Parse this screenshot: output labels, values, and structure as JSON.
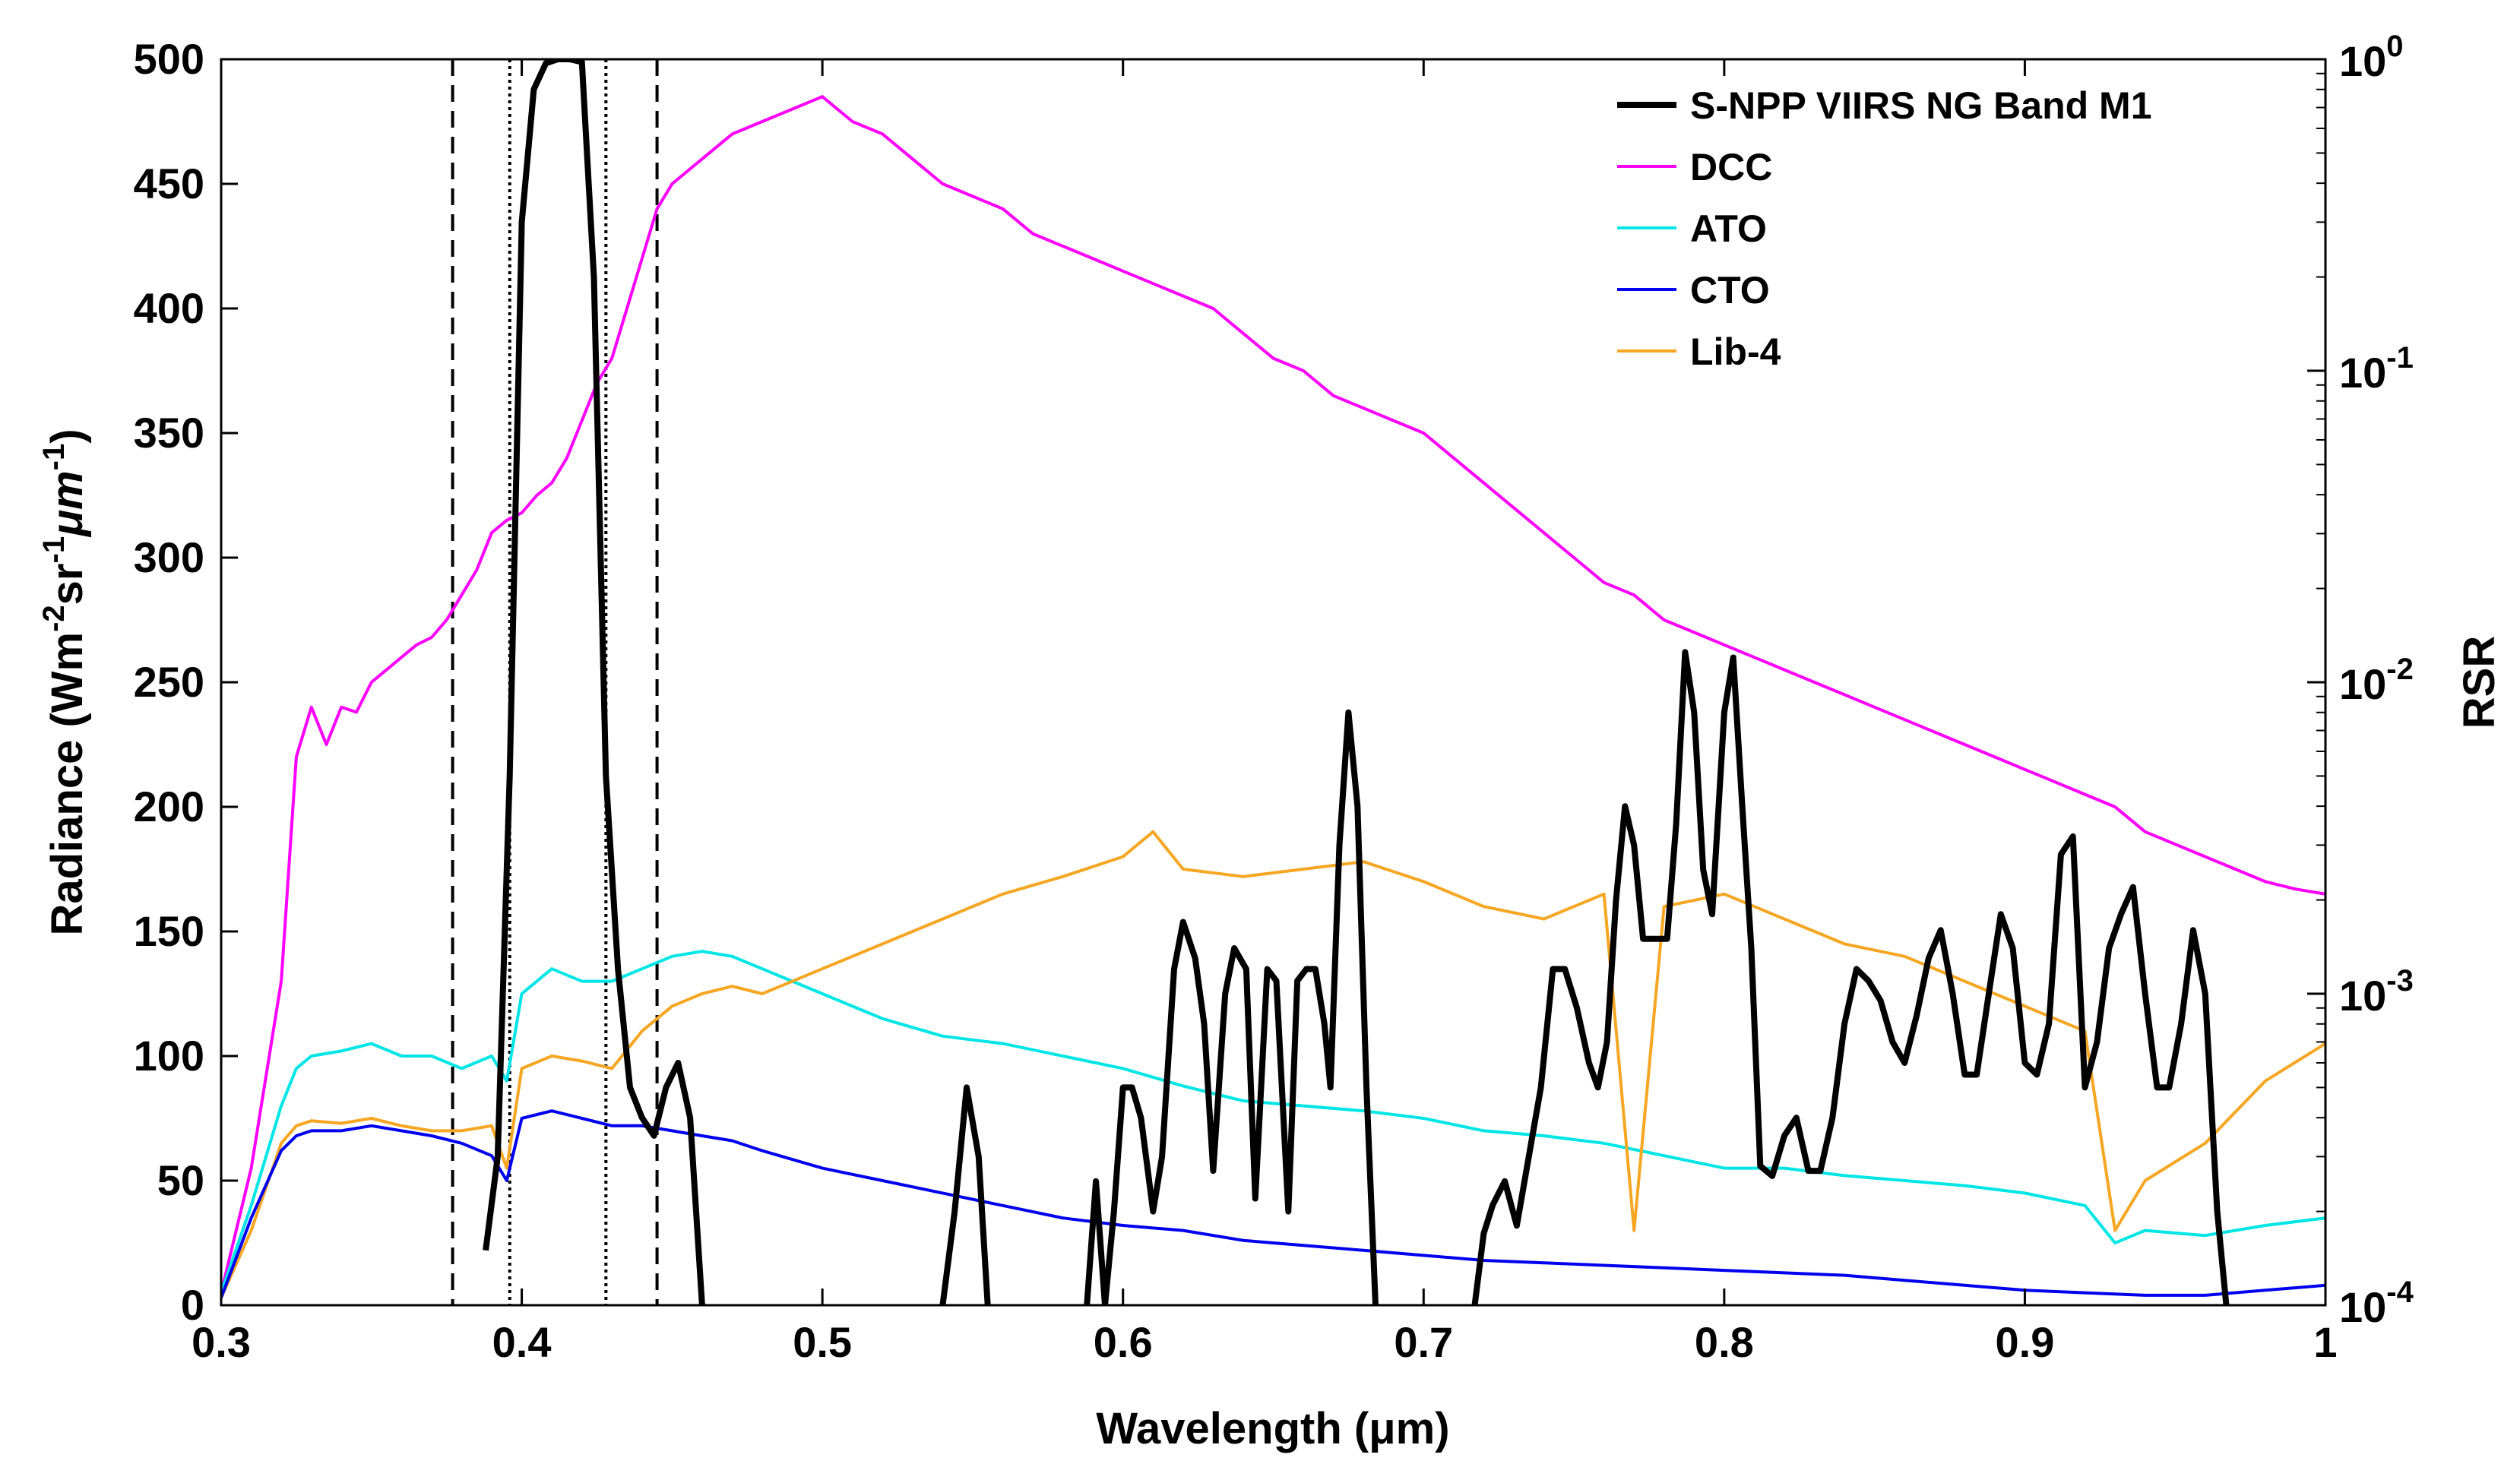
{
  "chart_data": {
    "type": "line",
    "title": "",
    "xlabel": "Wavelength (μm)",
    "ylabel": "Radiance (Wm-2sr-1μm-1)",
    "ylabel_parts": {
      "pre": "Radiance (Wm",
      "sup1": "-2",
      "mid": "sr",
      "sup2": "-1",
      "unit": "μm",
      "sup3": "-1",
      "post": ")"
    },
    "y2label": "RSR",
    "xlim": [
      0.3,
      1.0
    ],
    "ylim": [
      0,
      500
    ],
    "y2lim": [
      0.0001,
      1
    ],
    "y2scale": "log",
    "xticks": [
      "0.3",
      "0.4",
      "0.5",
      "0.6",
      "0.7",
      "0.8",
      "0.9",
      "1"
    ],
    "yticks": [
      "0",
      "50",
      "100",
      "150",
      "200",
      "250",
      "300",
      "350",
      "400",
      "450",
      "500"
    ],
    "y2ticks": [
      {
        "base": "10",
        "exp": "-4",
        "value": 0.0001
      },
      {
        "base": "10",
        "exp": "-3",
        "value": 0.001
      },
      {
        "base": "10",
        "exp": "-2",
        "value": 0.01
      },
      {
        "base": "10",
        "exp": "-1",
        "value": 0.1
      },
      {
        "base": "10",
        "exp": "0",
        "value": 1
      }
    ],
    "legend_position": "top-right",
    "vlines": [
      {
        "x": 0.377,
        "style": "dashed"
      },
      {
        "x": 0.445,
        "style": "dashed"
      },
      {
        "x": 0.396,
        "style": "dotted"
      },
      {
        "x": 0.428,
        "style": "dotted"
      }
    ],
    "series": [
      {
        "name": "S-NPP VIIRS NG Band M1",
        "color": "#000000",
        "axis": "right",
        "x": [
          0.388,
          0.392,
          0.396,
          0.4,
          0.404,
          0.408,
          0.412,
          0.416,
          0.42,
          0.424,
          0.428,
          0.432,
          0.436,
          0.44,
          0.444,
          0.448,
          0.452,
          0.456,
          0.46,
          0.54,
          0.544,
          0.548,
          0.552,
          0.555,
          0.588,
          0.591,
          0.594,
          0.597,
          0.6,
          0.603,
          0.606,
          0.61,
          0.613,
          0.617,
          0.62,
          0.624,
          0.627,
          0.63,
          0.634,
          0.637,
          0.641,
          0.644,
          0.648,
          0.651,
          0.655,
          0.658,
          0.661,
          0.664,
          0.667,
          0.669,
          0.672,
          0.675,
          0.678,
          0.681,
          0.684,
          0.717,
          0.72,
          0.723,
          0.727,
          0.731,
          0.735,
          0.739,
          0.743,
          0.747,
          0.751,
          0.755,
          0.758,
          0.761,
          0.764,
          0.767,
          0.77,
          0.773,
          0.777,
          0.781,
          0.784,
          0.787,
          0.79,
          0.793,
          0.796,
          0.8,
          0.803,
          0.806,
          0.809,
          0.812,
          0.816,
          0.82,
          0.824,
          0.828,
          0.832,
          0.836,
          0.84,
          0.844,
          0.848,
          0.852,
          0.856,
          0.86,
          0.864,
          0.868,
          0.872,
          0.876,
          0.88,
          0.884,
          0.888,
          0.892,
          0.896,
          0.9,
          0.904,
          0.908,
          0.912,
          0.916,
          0.92,
          0.924,
          0.928,
          0.932,
          0.936,
          0.94,
          0.944,
          0.948,
          0.952,
          0.956,
          0.96,
          0.964,
          0.967
        ],
        "y": [
          0.00015,
          0.0003,
          0.005,
          0.3,
          0.8,
          0.97,
          1,
          1,
          0.98,
          0.2,
          0.005,
          0.0012,
          0.0005,
          0.0004,
          0.00035,
          0.0005,
          0.0006,
          0.0004,
          0.0001,
          0.0001,
          0.0002,
          0.0005,
          0.0003,
          0.0001,
          0.0001,
          0.00025,
          0.0001,
          0.0002,
          0.0005,
          0.0005,
          0.0004,
          0.0002,
          0.0003,
          0.0012,
          0.0017,
          0.0013,
          0.0008,
          0.00027,
          0.001,
          0.0014,
          0.0012,
          0.00022,
          0.0012,
          0.0011,
          0.0002,
          0.0011,
          0.0012,
          0.0012,
          0.0008,
          0.0005,
          0.003,
          0.008,
          0.004,
          0.0005,
          0.0001,
          0.0001,
          0.00017,
          0.00021,
          0.00025,
          0.00018,
          0.0003,
          0.0005,
          0.0012,
          0.0012,
          0.0009,
          0.0006,
          0.0005,
          0.0007,
          0.002,
          0.004,
          0.003,
          0.0015,
          0.0015,
          0.0015,
          0.0035,
          0.0125,
          0.008,
          0.0025,
          0.0018,
          0.008,
          0.012,
          0.004,
          0.0014,
          0.00028,
          0.00026,
          0.00035,
          0.0004,
          0.00027,
          0.00027,
          0.0004,
          0.0008,
          0.0012,
          0.0011,
          0.00095,
          0.0007,
          0.0006,
          0.00085,
          0.0013,
          0.0016,
          0.001,
          0.00055,
          0.00055,
          0.001,
          0.0018,
          0.0014,
          0.0006,
          0.00055,
          0.0008,
          0.0028,
          0.0032,
          0.0005,
          0.0007,
          0.0014,
          0.0018,
          0.0022,
          0.001,
          0.0005,
          0.0005,
          0.0008,
          0.0016,
          0.001,
          0.0002,
          0.0001
        ]
      },
      {
        "name": "DCC",
        "color": "#ff00ff",
        "axis": "left",
        "x": [
          0.3,
          0.31,
          0.32,
          0.325,
          0.33,
          0.335,
          0.34,
          0.345,
          0.35,
          0.355,
          0.36,
          0.365,
          0.37,
          0.375,
          0.38,
          0.385,
          0.39,
          0.395,
          0.4,
          0.405,
          0.41,
          0.415,
          0.42,
          0.425,
          0.43,
          0.435,
          0.44,
          0.445,
          0.45,
          0.46,
          0.47,
          0.48,
          0.49,
          0.5,
          0.51,
          0.52,
          0.53,
          0.54,
          0.55,
          0.56,
          0.57,
          0.58,
          0.59,
          0.6,
          0.61,
          0.62,
          0.63,
          0.64,
          0.65,
          0.66,
          0.67,
          0.68,
          0.69,
          0.7,
          0.71,
          0.72,
          0.73,
          0.74,
          0.75,
          0.76,
          0.77,
          0.78,
          0.79,
          0.8,
          0.81,
          0.82,
          0.83,
          0.84,
          0.85,
          0.86,
          0.87,
          0.88,
          0.89,
          0.9,
          0.91,
          0.92,
          0.93,
          0.94,
          0.95,
          0.96,
          0.97,
          0.98,
          0.99,
          1.0
        ],
        "y": [
          5,
          55,
          130,
          220,
          240,
          225,
          240,
          238,
          250,
          255,
          260,
          265,
          268,
          275,
          285,
          295,
          310,
          315,
          318,
          325,
          330,
          340,
          355,
          370,
          380,
          400,
          420,
          440,
          450,
          460,
          470,
          475,
          480,
          485,
          475,
          470,
          460,
          450,
          445,
          440,
          430,
          425,
          420,
          415,
          410,
          405,
          400,
          390,
          380,
          375,
          365,
          360,
          355,
          350,
          340,
          330,
          320,
          310,
          300,
          290,
          285,
          275,
          270,
          265,
          260,
          255,
          250,
          245,
          240,
          235,
          230,
          225,
          220,
          215,
          210,
          205,
          200,
          190,
          185,
          180,
          175,
          170,
          167,
          165
        ]
      },
      {
        "name": "ATO",
        "color": "#00e5e5",
        "axis": "left",
        "x": [
          0.3,
          0.31,
          0.32,
          0.325,
          0.33,
          0.34,
          0.35,
          0.36,
          0.37,
          0.38,
          0.39,
          0.395,
          0.4,
          0.41,
          0.42,
          0.43,
          0.44,
          0.45,
          0.46,
          0.47,
          0.48,
          0.49,
          0.5,
          0.52,
          0.54,
          0.56,
          0.58,
          0.6,
          0.62,
          0.64,
          0.66,
          0.68,
          0.7,
          0.72,
          0.74,
          0.76,
          0.78,
          0.8,
          0.82,
          0.84,
          0.86,
          0.88,
          0.9,
          0.92,
          0.93,
          0.94,
          0.96,
          0.98,
          1.0
        ],
        "y": [
          5,
          40,
          80,
          95,
          100,
          102,
          105,
          100,
          100,
          95,
          100,
          90,
          125,
          135,
          130,
          130,
          135,
          140,
          142,
          140,
          135,
          130,
          125,
          115,
          108,
          105,
          100,
          95,
          88,
          82,
          80,
          78,
          75,
          70,
          68,
          65,
          60,
          55,
          55,
          52,
          50,
          48,
          45,
          40,
          25,
          30,
          28,
          32,
          35
        ]
      },
      {
        "name": "CTO",
        "color": "#0000ee",
        "axis": "left",
        "x": [
          0.3,
          0.31,
          0.32,
          0.325,
          0.33,
          0.34,
          0.35,
          0.36,
          0.37,
          0.38,
          0.39,
          0.395,
          0.4,
          0.41,
          0.42,
          0.43,
          0.44,
          0.45,
          0.46,
          0.47,
          0.48,
          0.5,
          0.52,
          0.54,
          0.56,
          0.58,
          0.6,
          0.62,
          0.64,
          0.66,
          0.68,
          0.7,
          0.72,
          0.74,
          0.76,
          0.78,
          0.8,
          0.82,
          0.84,
          0.86,
          0.88,
          0.9,
          0.92,
          0.94,
          0.96,
          0.98,
          1.0
        ],
        "y": [
          3,
          35,
          62,
          68,
          70,
          70,
          72,
          70,
          68,
          65,
          60,
          50,
          75,
          78,
          75,
          72,
          72,
          70,
          68,
          66,
          62,
          55,
          50,
          45,
          40,
          35,
          32,
          30,
          26,
          24,
          22,
          20,
          18,
          17,
          16,
          15,
          14,
          13,
          12,
          10,
          8,
          6,
          5,
          4,
          4,
          6,
          8
        ]
      },
      {
        "name": "Lib-4",
        "color": "#f5a623",
        "axis": "left",
        "x": [
          0.3,
          0.31,
          0.32,
          0.325,
          0.33,
          0.34,
          0.35,
          0.36,
          0.37,
          0.38,
          0.39,
          0.395,
          0.4,
          0.41,
          0.42,
          0.43,
          0.44,
          0.45,
          0.46,
          0.47,
          0.48,
          0.5,
          0.52,
          0.54,
          0.56,
          0.58,
          0.6,
          0.61,
          0.62,
          0.64,
          0.66,
          0.68,
          0.7,
          0.72,
          0.74,
          0.76,
          0.77,
          0.78,
          0.8,
          0.82,
          0.84,
          0.86,
          0.88,
          0.9,
          0.92,
          0.93,
          0.94,
          0.96,
          0.98,
          1.0
        ],
        "y": [
          3,
          30,
          65,
          72,
          74,
          73,
          75,
          72,
          70,
          70,
          72,
          55,
          95,
          100,
          98,
          95,
          110,
          120,
          125,
          128,
          125,
          135,
          145,
          155,
          165,
          172,
          180,
          190,
          175,
          172,
          175,
          178,
          170,
          160,
          155,
          165,
          30,
          160,
          165,
          155,
          145,
          140,
          130,
          120,
          110,
          30,
          50,
          65,
          90,
          105
        ]
      }
    ]
  }
}
